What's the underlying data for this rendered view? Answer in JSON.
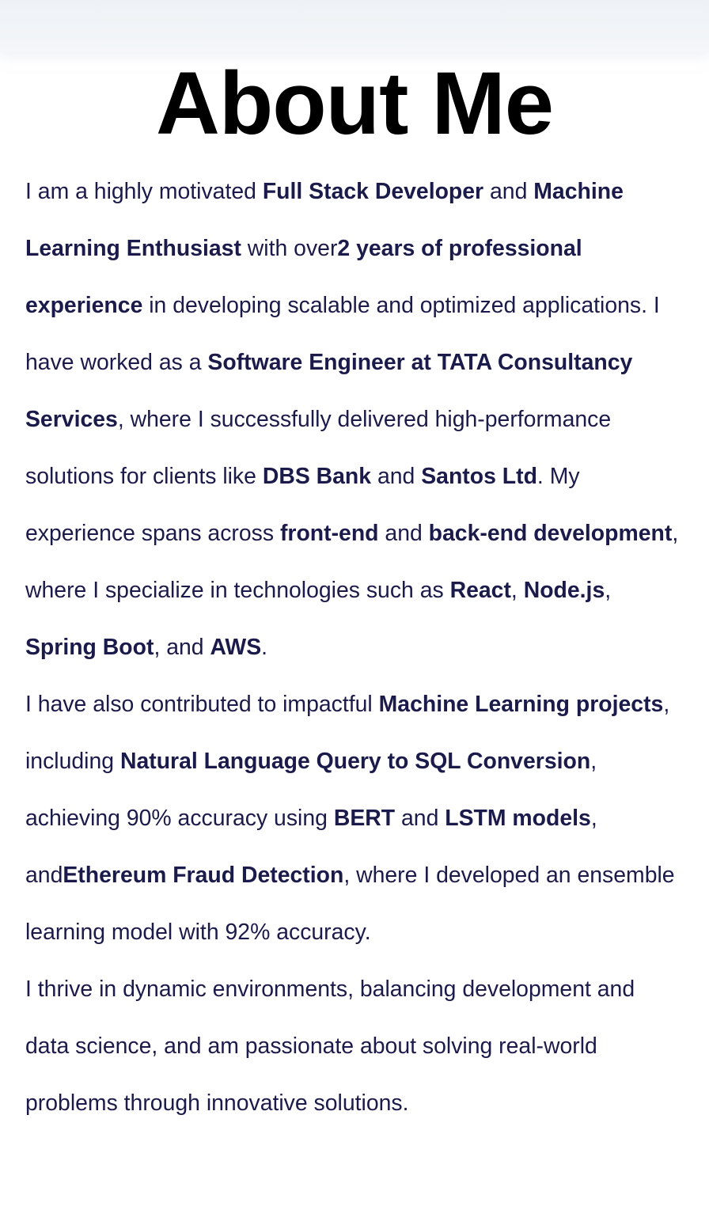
{
  "header": {
    "title": "About Me"
  },
  "about": {
    "p1": {
      "s1": "I am a highly motivated ",
      "b1": "Full Stack Developer",
      "s2": " and ",
      "b2": "Machine Learning Enthusiast",
      "s3": " with over",
      "b3": "2 years of professional experience",
      "s4": " in developing scalable and optimized applications. I have worked as a ",
      "b4": "Software Engineer at TATA Consultancy Services",
      "s5": ", where I successfully delivered high-performance solutions for clients like ",
      "b5": "DBS Bank",
      "s6": " and ",
      "b6": "Santos Ltd",
      "s7": ". My experience spans across ",
      "b7": "front-end",
      "s8": " and ",
      "b8": "back-end development",
      "s9": ", where I specialize in technologies such as ",
      "b9": "React",
      "s10": ", ",
      "b10": "Node.js",
      "s11": ", ",
      "b11": "Spring Boot",
      "s12": ", and ",
      "b12": "AWS",
      "s13": "."
    },
    "p2": {
      "s1": "I have also contributed to impactful ",
      "b1": "Machine Learning projects",
      "s2": ", including ",
      "b2": "Natural Language Query to SQL Conversion",
      "s3": ", achieving 90% accuracy using ",
      "b3": "BERT",
      "s4": " and ",
      "b4": "LSTM models",
      "s5": ", and",
      "b5": "Ethereum Fraud Detection",
      "s6": ", where I developed an ensemble learning model with 92% accuracy."
    },
    "p3": {
      "s1": "I thrive in dynamic environments, balancing development and data science, and am passionate about solving real-world problems through innovative solutions."
    }
  },
  "colors": {
    "heading": "#000000",
    "body_text": "#1b1b4b",
    "top_bar": "#eef2f6",
    "background": "#ffffff"
  }
}
